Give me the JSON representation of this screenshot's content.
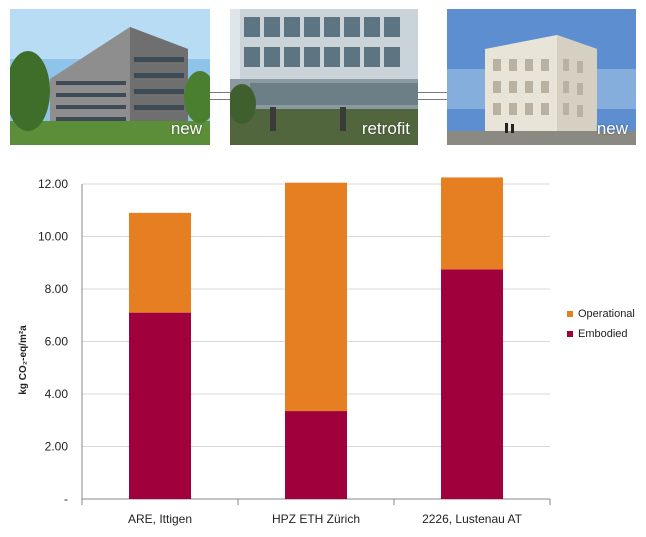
{
  "photos": [
    {
      "label": "new"
    },
    {
      "label": "retrofit"
    },
    {
      "label": "new"
    }
  ],
  "colors": {
    "operational": "#E67E22",
    "embodied": "#A0003C",
    "grid": "#d9d9d9",
    "axis": "#888888"
  },
  "chart_data": {
    "type": "bar",
    "stacked": true,
    "categories": [
      "ARE, Ittigen",
      "HPZ ETH Zürich",
      "2226, Lustenau AT"
    ],
    "series": [
      {
        "name": "Embodied",
        "values": [
          7.1,
          3.35,
          8.75
        ]
      },
      {
        "name": "Operational",
        "values": [
          3.8,
          8.7,
          3.5
        ]
      }
    ],
    "ylabel": "kg CO₂-eq/m²a",
    "ylim": [
      0,
      12
    ],
    "yticks": [
      "-",
      "2.00",
      "4.00",
      "6.00",
      "8.00",
      "10.00",
      "12.00"
    ],
    "grid": true,
    "legend_position": "right",
    "legend": [
      "Operational",
      "Embodied"
    ]
  }
}
